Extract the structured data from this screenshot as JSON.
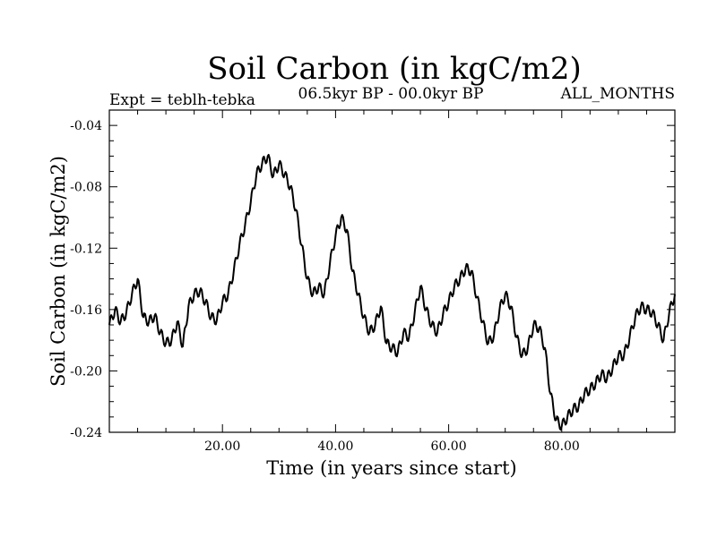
{
  "chart_data": {
    "type": "line",
    "title": "Soil Carbon (in kgC/m2)",
    "subtitle_left": "Expt = teblh-tebka",
    "subtitle_center": "06.5kyr BP - 00.0kyr BP",
    "subtitle_right": "ALL_MONTHS",
    "xlabel": "Time (in years since start)",
    "ylabel": "Soil Carbon (in kgC/m2)",
    "xlim": [
      0,
      100
    ],
    "ylim": [
      -0.24,
      -0.03
    ],
    "xticks": [
      20,
      40,
      60,
      80
    ],
    "xtick_labels": [
      "20.00",
      "40.00",
      "60.00",
      "80.00"
    ],
    "yticks": [
      -0.04,
      -0.08,
      -0.12,
      -0.16,
      -0.2,
      -0.24
    ],
    "ytick_labels": [
      "-0.04",
      "-0.08",
      "-0.12",
      "-0.16",
      "-0.20",
      "-0.24"
    ],
    "grid": false,
    "series": [
      {
        "name": "Soil Carbon",
        "color": "#000000",
        "x": [
          0,
          1,
          2,
          3,
          4,
          5,
          6,
          7,
          8,
          9,
          10,
          11,
          12,
          13,
          14,
          15,
          16,
          17,
          18,
          19,
          20,
          21,
          22,
          23,
          24,
          25,
          26,
          27,
          28,
          29,
          30,
          31,
          32,
          33,
          34,
          35,
          36,
          37,
          38,
          39,
          40,
          41,
          42,
          43,
          44,
          45,
          46,
          47,
          48,
          49,
          50,
          51,
          52,
          53,
          54,
          55,
          56,
          57,
          58,
          59,
          60,
          61,
          62,
          63,
          64,
          65,
          66,
          67,
          68,
          69,
          70,
          71,
          72,
          73,
          74,
          75,
          76,
          77,
          78,
          79,
          80,
          81,
          82,
          83,
          84,
          85,
          86,
          87,
          88,
          89,
          90,
          91,
          92,
          93,
          94,
          95,
          96,
          97,
          98,
          99,
          100
        ],
        "values": [
          -0.17,
          -0.16,
          -0.168,
          -0.162,
          -0.15,
          -0.14,
          -0.165,
          -0.168,
          -0.164,
          -0.175,
          -0.182,
          -0.18,
          -0.168,
          -0.184,
          -0.158,
          -0.15,
          -0.148,
          -0.155,
          -0.165,
          -0.167,
          -0.155,
          -0.15,
          -0.135,
          -0.118,
          -0.105,
          -0.09,
          -0.072,
          -0.065,
          -0.06,
          -0.073,
          -0.065,
          -0.072,
          -0.08,
          -0.095,
          -0.118,
          -0.14,
          -0.15,
          -0.145,
          -0.15,
          -0.13,
          -0.112,
          -0.1,
          -0.108,
          -0.135,
          -0.15,
          -0.165,
          -0.175,
          -0.17,
          -0.158,
          -0.182,
          -0.185,
          -0.188,
          -0.175,
          -0.178,
          -0.162,
          -0.145,
          -0.16,
          -0.17,
          -0.175,
          -0.163,
          -0.155,
          -0.145,
          -0.14,
          -0.133,
          -0.135,
          -0.152,
          -0.168,
          -0.182,
          -0.177,
          -0.16,
          -0.15,
          -0.158,
          -0.178,
          -0.19,
          -0.185,
          -0.17,
          -0.172,
          -0.185,
          -0.215,
          -0.232,
          -0.236,
          -0.23,
          -0.225,
          -0.223,
          -0.215,
          -0.212,
          -0.208,
          -0.202,
          -0.205,
          -0.198,
          -0.19,
          -0.19,
          -0.178,
          -0.165,
          -0.158,
          -0.16,
          -0.162,
          -0.17,
          -0.18,
          -0.162,
          -0.15
        ]
      }
    ]
  }
}
